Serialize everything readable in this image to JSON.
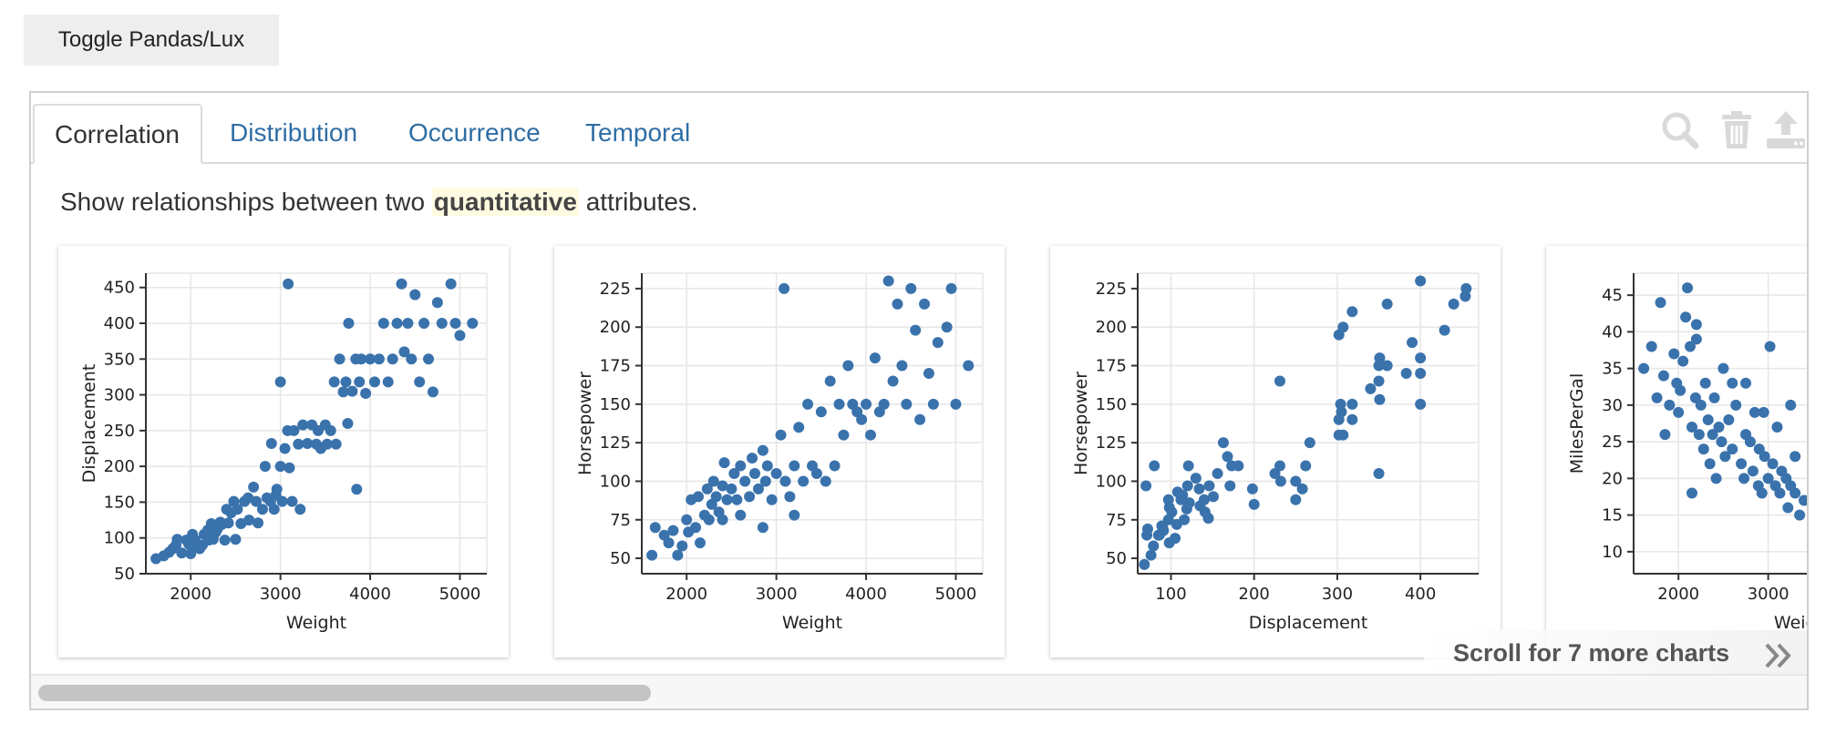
{
  "toggle": {
    "label": "Toggle Pandas/Lux"
  },
  "tabs": [
    {
      "label": "Correlation",
      "active": true
    },
    {
      "label": "Distribution",
      "active": false
    },
    {
      "label": "Occurrence",
      "active": false
    },
    {
      "label": "Temporal",
      "active": false
    }
  ],
  "toolbar": {
    "icons": [
      "search-icon",
      "trash-icon",
      "upload-icon"
    ]
  },
  "description": {
    "before": "Show relationships between two ",
    "highlight": "quantitative",
    "after": " attributes."
  },
  "scroll_hint": {
    "label": "Scroll for 7 more charts"
  },
  "colors": {
    "point": "#3a72ac",
    "accent": "#2f6ea5",
    "grid": "#e6e6e6",
    "axis": "#333333"
  },
  "chart_data": [
    {
      "type": "scatter",
      "xlabel": "Weight",
      "ylabel": "Displacement",
      "xlim": [
        1500,
        5300
      ],
      "ylim": [
        50,
        470
      ],
      "xticks": [
        2000,
        3000,
        4000,
        5000
      ],
      "yticks": [
        50,
        100,
        150,
        200,
        250,
        300,
        350,
        400,
        450
      ],
      "points": [
        [
          1613,
          71
        ],
        [
          1700,
          75
        ],
        [
          1760,
          80
        ],
        [
          1800,
          85
        ],
        [
          1835,
          90
        ],
        [
          1850,
          98
        ],
        [
          1900,
          79
        ],
        [
          1950,
          97
        ],
        [
          1980,
          91
        ],
        [
          2000,
          78
        ],
        [
          2020,
          105
        ],
        [
          2050,
          97
        ],
        [
          2100,
          85
        ],
        [
          2130,
          90
        ],
        [
          2150,
          105
        ],
        [
          2190,
          111
        ],
        [
          2200,
          97
        ],
        [
          2230,
          120
        ],
        [
          2250,
          98
        ],
        [
          2280,
          108
        ],
        [
          2300,
          113
        ],
        [
          2330,
          122
        ],
        [
          2350,
          119
        ],
        [
          2380,
          97
        ],
        [
          2400,
          140
        ],
        [
          2420,
          121
        ],
        [
          2450,
          135
        ],
        [
          2480,
          151
        ],
        [
          2500,
          98
        ],
        [
          2520,
          140
        ],
        [
          2560,
          120
        ],
        [
          2600,
          151
        ],
        [
          2640,
          156
        ],
        [
          2700,
          171
        ],
        [
          2730,
          151
        ],
        [
          2750,
          121
        ],
        [
          2800,
          140
        ],
        [
          2830,
          200
        ],
        [
          2850,
          156
        ],
        [
          2890,
          151
        ],
        [
          2900,
          232
        ],
        [
          2930,
          140
        ],
        [
          2960,
          168
        ],
        [
          3000,
          200
        ],
        [
          3020,
          151
        ],
        [
          3050,
          225
        ],
        [
          3080,
          250
        ],
        [
          3100,
          198
        ],
        [
          3130,
          151
        ],
        [
          3150,
          250
        ],
        [
          3200,
          231
        ],
        [
          3220,
          140
        ],
        [
          3250,
          258
        ],
        [
          3300,
          232
        ],
        [
          3350,
          258
        ],
        [
          3400,
          231
        ],
        [
          3420,
          250
        ],
        [
          3450,
          225
        ],
        [
          3500,
          258
        ],
        [
          3520,
          231
        ],
        [
          3560,
          250
        ],
        [
          3600,
          318
        ],
        [
          3620,
          231
        ],
        [
          3660,
          350
        ],
        [
          3700,
          304
        ],
        [
          3730,
          318
        ],
        [
          3760,
          400
        ],
        [
          3800,
          305
        ],
        [
          3840,
          350
        ],
        [
          3880,
          318
        ],
        [
          3900,
          350
        ],
        [
          3950,
          302
        ],
        [
          4000,
          350
        ],
        [
          4050,
          318
        ],
        [
          4100,
          350
        ],
        [
          4150,
          400
        ],
        [
          4200,
          318
        ],
        [
          4250,
          350
        ],
        [
          4300,
          400
        ],
        [
          4350,
          455
        ],
        [
          4380,
          360
        ],
        [
          4420,
          400
        ],
        [
          4460,
          350
        ],
        [
          4500,
          440
        ],
        [
          4550,
          318
        ],
        [
          4600,
          400
        ],
        [
          4650,
          350
        ],
        [
          4700,
          304
        ],
        [
          4750,
          429
        ],
        [
          4800,
          400
        ],
        [
          4900,
          455
        ],
        [
          4950,
          400
        ],
        [
          5000,
          383
        ],
        [
          5140,
          400
        ],
        [
          3086,
          455
        ],
        [
          3000,
          318
        ],
        [
          3850,
          168
        ],
        [
          3750,
          260
        ],
        [
          2950,
          160
        ],
        [
          2650,
          125
        ],
        [
          2250,
          100
        ],
        [
          2050,
          88
        ]
      ]
    },
    {
      "type": "scatter",
      "xlabel": "Weight",
      "ylabel": "Horsepower",
      "xlim": [
        1500,
        5300
      ],
      "ylim": [
        40,
        235
      ],
      "xticks": [
        2000,
        3000,
        4000,
        5000
      ],
      "yticks": [
        50,
        75,
        100,
        125,
        150,
        175,
        200,
        225
      ],
      "points": [
        [
          1613,
          52
        ],
        [
          1650,
          70
        ],
        [
          1750,
          65
        ],
        [
          1800,
          60
        ],
        [
          1850,
          68
        ],
        [
          1900,
          52
        ],
        [
          1950,
          58
        ],
        [
          2000,
          75
        ],
        [
          2020,
          67
        ],
        [
          2050,
          88
        ],
        [
          2100,
          70
        ],
        [
          2130,
          90
        ],
        [
          2150,
          60
        ],
        [
          2200,
          78
        ],
        [
          2230,
          95
        ],
        [
          2250,
          75
        ],
        [
          2280,
          85
        ],
        [
          2300,
          100
        ],
        [
          2330,
          90
        ],
        [
          2360,
          80
        ],
        [
          2400,
          97
        ],
        [
          2420,
          112
        ],
        [
          2450,
          88
        ],
        [
          2500,
          95
        ],
        [
          2530,
          105
        ],
        [
          2560,
          88
        ],
        [
          2600,
          110
        ],
        [
          2650,
          100
        ],
        [
          2700,
          90
        ],
        [
          2730,
          115
        ],
        [
          2760,
          105
        ],
        [
          2800,
          95
        ],
        [
          2850,
          120
        ],
        [
          2880,
          100
        ],
        [
          2900,
          110
        ],
        [
          2950,
          88
        ],
        [
          3000,
          105
        ],
        [
          3050,
          130
        ],
        [
          3100,
          100
        ],
        [
          3150,
          90
        ],
        [
          3200,
          110
        ],
        [
          3250,
          135
        ],
        [
          3300,
          100
        ],
        [
          3350,
          150
        ],
        [
          3400,
          110
        ],
        [
          3450,
          105
        ],
        [
          3500,
          145
        ],
        [
          3550,
          100
        ],
        [
          3600,
          165
        ],
        [
          3650,
          110
        ],
        [
          3700,
          150
        ],
        [
          3750,
          130
        ],
        [
          3800,
          175
        ],
        [
          3850,
          150
        ],
        [
          3900,
          145
        ],
        [
          3950,
          140
        ],
        [
          4000,
          150
        ],
        [
          4050,
          130
        ],
        [
          4100,
          180
        ],
        [
          4150,
          145
        ],
        [
          4200,
          150
        ],
        [
          4250,
          230
        ],
        [
          4300,
          165
        ],
        [
          4350,
          215
        ],
        [
          4400,
          175
        ],
        [
          4450,
          150
        ],
        [
          4500,
          225
        ],
        [
          4550,
          198
        ],
        [
          4600,
          140
        ],
        [
          4650,
          215
        ],
        [
          4700,
          170
        ],
        [
          4750,
          150
        ],
        [
          4800,
          190
        ],
        [
          4900,
          200
        ],
        [
          4950,
          225
        ],
        [
          5000,
          150
        ],
        [
          5140,
          175
        ],
        [
          3086,
          225
        ],
        [
          2850,
          70
        ],
        [
          3200,
          78
        ],
        [
          2400,
          75
        ],
        [
          2600,
          78
        ]
      ]
    },
    {
      "type": "scatter",
      "xlabel": "Displacement",
      "ylabel": "Horsepower",
      "xlim": [
        60,
        470
      ],
      "ylim": [
        40,
        235
      ],
      "xticks": [
        100,
        200,
        300,
        400
      ],
      "yticks": [
        50,
        75,
        100,
        125,
        150,
        175,
        200,
        225
      ],
      "points": [
        [
          68,
          46
        ],
        [
          70,
          97
        ],
        [
          71,
          65
        ],
        [
          72,
          69
        ],
        [
          76,
          52
        ],
        [
          79,
          58
        ],
        [
          80,
          110
        ],
        [
          85,
          65
        ],
        [
          86,
          65
        ],
        [
          89,
          71
        ],
        [
          90,
          70
        ],
        [
          91,
          68
        ],
        [
          97,
          75
        ],
        [
          97,
          88
        ],
        [
          98,
          60
        ],
        [
          98,
          83
        ],
        [
          101,
          80
        ],
        [
          105,
          63
        ],
        [
          107,
          72
        ],
        [
          108,
          93
        ],
        [
          112,
          88
        ],
        [
          114,
          91
        ],
        [
          116,
          75
        ],
        [
          119,
          82
        ],
        [
          120,
          97
        ],
        [
          121,
          110
        ],
        [
          122,
          86
        ],
        [
          130,
          102
        ],
        [
          134,
          95
        ],
        [
          135,
          84
        ],
        [
          140,
          88
        ],
        [
          141,
          80
        ],
        [
          145,
          76
        ],
        [
          146,
          97
        ],
        [
          151,
          90
        ],
        [
          156,
          105
        ],
        [
          163,
          125
        ],
        [
          168,
          116
        ],
        [
          171,
          97
        ],
        [
          173,
          110
        ],
        [
          181,
          110
        ],
        [
          198,
          95
        ],
        [
          200,
          85
        ],
        [
          225,
          105
        ],
        [
          231,
          110
        ],
        [
          232,
          100
        ],
        [
          250,
          88
        ],
        [
          250,
          100
        ],
        [
          258,
          95
        ],
        [
          262,
          110
        ],
        [
          267,
          125
        ],
        [
          302,
          130
        ],
        [
          302,
          140
        ],
        [
          304,
          150
        ],
        [
          305,
          145
        ],
        [
          307,
          130
        ],
        [
          318,
          150
        ],
        [
          318,
          140
        ],
        [
          302,
          195
        ],
        [
          307,
          200
        ],
        [
          318,
          210
        ],
        [
          350,
          165
        ],
        [
          350,
          175
        ],
        [
          351,
          153
        ],
        [
          351,
          180
        ],
        [
          360,
          175
        ],
        [
          360,
          215
        ],
        [
          383,
          170
        ],
        [
          390,
          190
        ],
        [
          400,
          150
        ],
        [
          400,
          170
        ],
        [
          400,
          180
        ],
        [
          400,
          230
        ],
        [
          429,
          198
        ],
        [
          440,
          215
        ],
        [
          454,
          220
        ],
        [
          455,
          225
        ],
        [
          350,
          105
        ],
        [
          340,
          160
        ],
        [
          231,
          165
        ]
      ]
    },
    {
      "type": "scatter",
      "xlabel": "Weight",
      "ylabel": "MilesPerGal",
      "xlim": [
        1500,
        5300
      ],
      "ylim": [
        7,
        48
      ],
      "xticks": [
        2000,
        3000
      ],
      "yticks": [
        10,
        15,
        20,
        25,
        30,
        35,
        40,
        45
      ],
      "points": [
        [
          1613,
          35
        ],
        [
          1700,
          38
        ],
        [
          1760,
          31
        ],
        [
          1800,
          44
        ],
        [
          1835,
          34
        ],
        [
          1850,
          26
        ],
        [
          1900,
          30
        ],
        [
          1950,
          37
        ],
        [
          1980,
          33
        ],
        [
          2000,
          29
        ],
        [
          2020,
          32
        ],
        [
          2050,
          36
        ],
        [
          2100,
          46
        ],
        [
          2130,
          38
        ],
        [
          2150,
          27
        ],
        [
          2190,
          31
        ],
        [
          2200,
          41
        ],
        [
          2230,
          26
        ],
        [
          2250,
          30
        ],
        [
          2280,
          24
        ],
        [
          2300,
          33
        ],
        [
          2330,
          28
        ],
        [
          2350,
          22
        ],
        [
          2380,
          26
        ],
        [
          2400,
          31
        ],
        [
          2420,
          20
        ],
        [
          2450,
          27
        ],
        [
          2480,
          25
        ],
        [
          2500,
          35
        ],
        [
          2520,
          23
        ],
        [
          2560,
          28
        ],
        [
          2600,
          24
        ],
        [
          2640,
          30
        ],
        [
          2700,
          22
        ],
        [
          2730,
          20
        ],
        [
          2750,
          26
        ],
        [
          2800,
          25
        ],
        [
          2830,
          21
        ],
        [
          2850,
          29
        ],
        [
          2890,
          19
        ],
        [
          2900,
          24
        ],
        [
          2930,
          18
        ],
        [
          2960,
          23
        ],
        [
          3000,
          20
        ],
        [
          3020,
          38
        ],
        [
          3050,
          22
        ],
        [
          3080,
          19
        ],
        [
          3100,
          27
        ],
        [
          3130,
          18
        ],
        [
          3150,
          21
        ],
        [
          3200,
          20
        ],
        [
          3220,
          16
        ],
        [
          3250,
          19
        ],
        [
          3300,
          18
        ],
        [
          3350,
          15
        ],
        [
          3400,
          17
        ],
        [
          2080,
          42
        ],
        [
          2200,
          39
        ],
        [
          2150,
          18
        ],
        [
          2600,
          33
        ],
        [
          2750,
          33
        ],
        [
          2950,
          29
        ],
        [
          3250,
          30
        ],
        [
          3300,
          23
        ]
      ]
    }
  ]
}
